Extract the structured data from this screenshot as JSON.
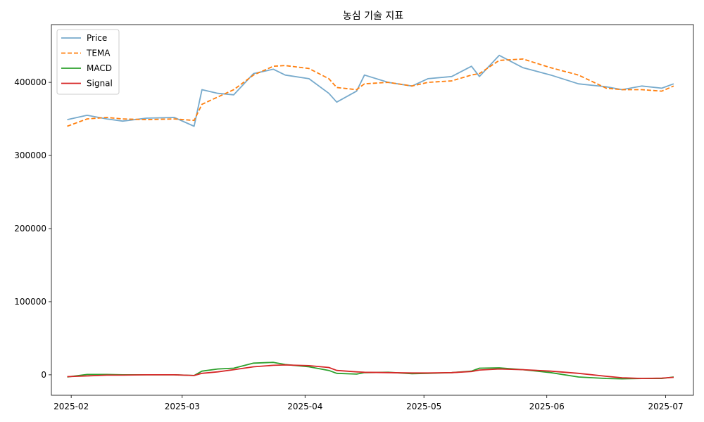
{
  "chart_data": {
    "type": "line",
    "title": "농심 기술 지표",
    "xlabel": "",
    "ylabel": "",
    "x_ticks": [
      "2025-02",
      "2025-03",
      "2025-04",
      "2025-05",
      "2025-06",
      "2025-07"
    ],
    "y_ticks": [
      "0",
      "100000",
      "200000",
      "300000",
      "400000"
    ],
    "ylim": [
      -28000,
      479000
    ],
    "xlim": [
      "2025-01-27",
      "2025-07-08"
    ],
    "grid": false,
    "legend_position": "top-left",
    "x": [
      "2025-01-31",
      "2025-02-05",
      "2025-02-10",
      "2025-02-14",
      "2025-02-20",
      "2025-02-27",
      "2025-03-04",
      "2025-03-06",
      "2025-03-10",
      "2025-03-14",
      "2025-03-19",
      "2025-03-24",
      "2025-03-27",
      "2025-04-02",
      "2025-04-07",
      "2025-04-09",
      "2025-04-14",
      "2025-04-16",
      "2025-04-22",
      "2025-04-28",
      "2025-05-02",
      "2025-05-08",
      "2025-05-13",
      "2025-05-15",
      "2025-05-20",
      "2025-05-26",
      "2025-06-02",
      "2025-06-09",
      "2025-06-16",
      "2025-06-20",
      "2025-06-25",
      "2025-06-30",
      "2025-07-03"
    ],
    "series": [
      {
        "name": "Price",
        "color": "#77aacc",
        "style": "solid",
        "values": [
          349000,
          355000,
          350000,
          347000,
          351000,
          352000,
          340000,
          390000,
          385000,
          383000,
          412000,
          418000,
          410000,
          405000,
          385000,
          373000,
          388000,
          410000,
          400000,
          395000,
          405000,
          408000,
          422000,
          408000,
          437000,
          420000,
          410000,
          398000,
          394000,
          390000,
          395000,
          392000,
          398000
        ]
      },
      {
        "name": "TEMA",
        "color": "#ff7f0e",
        "style": "dashed",
        "values": [
          340000,
          350000,
          352000,
          350000,
          349000,
          350000,
          348000,
          370000,
          380000,
          390000,
          410000,
          422000,
          423000,
          419000,
          405000,
          393000,
          390000,
          398000,
          400000,
          395000,
          400000,
          402000,
          410000,
          412000,
          430000,
          432000,
          420000,
          410000,
          392000,
          390000,
          390000,
          388000,
          395000
        ]
      },
      {
        "name": "MACD",
        "color": "#2ca02c",
        "style": "solid",
        "values": [
          -3000,
          500,
          500,
          0,
          0,
          0,
          -1000,
          5000,
          8000,
          9000,
          16000,
          17000,
          14000,
          11000,
          6000,
          2000,
          1000,
          3000,
          3500,
          1500,
          2000,
          3000,
          5000,
          9000,
          9500,
          7000,
          3000,
          -3000,
          -5000,
          -5500,
          -5000,
          -5000,
          -3000
        ]
      },
      {
        "name": "Signal",
        "color": "#d62728",
        "style": "solid",
        "values": [
          -2500,
          -1500,
          -500,
          -500,
          0,
          0,
          -1000,
          2000,
          4000,
          7000,
          11000,
          13000,
          13500,
          12500,
          10000,
          6000,
          4000,
          3500,
          3000,
          2500,
          2500,
          3000,
          4500,
          6500,
          8000,
          7000,
          5000,
          2000,
          -2000,
          -4000,
          -5000,
          -4500,
          -3500
        ]
      }
    ]
  }
}
